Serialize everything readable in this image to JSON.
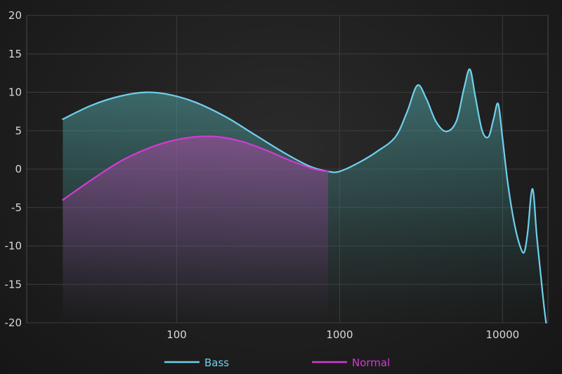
{
  "chart_data": {
    "type": "line",
    "xscale": "log",
    "xlim": [
      12,
      19000
    ],
    "ylim": [
      -20,
      20
    ],
    "grid": true,
    "legend_position": "bottom-center",
    "x_ticks": [
      100,
      1000,
      10000
    ],
    "x_tick_labels": [
      "100",
      "1000",
      "10000"
    ],
    "y_ticks": [
      20,
      15,
      10,
      5,
      0,
      -5,
      -10,
      -15,
      -20
    ],
    "y_tick_labels": [
      "20",
      "15",
      "10",
      "5",
      "0",
      "-5",
      "-10",
      "-15",
      "-20"
    ],
    "series": [
      {
        "name": "Bass",
        "color": "#6fd0ee",
        "fill": "#4fa8a8",
        "points": [
          [
            20,
            6.5
          ],
          [
            30,
            8.3
          ],
          [
            45,
            9.5
          ],
          [
            65,
            10.0
          ],
          [
            90,
            9.7
          ],
          [
            130,
            8.7
          ],
          [
            200,
            6.8
          ],
          [
            300,
            4.5
          ],
          [
            450,
            2.2
          ],
          [
            650,
            0.4
          ],
          [
            850,
            -0.3
          ],
          [
            1000,
            -0.3
          ],
          [
            1300,
            0.8
          ],
          [
            1700,
            2.3
          ],
          [
            2200,
            4.2
          ],
          [
            2600,
            7.5
          ],
          [
            3000,
            10.9
          ],
          [
            3400,
            9.2
          ],
          [
            3900,
            6.2
          ],
          [
            4500,
            4.9
          ],
          [
            5200,
            6.2
          ],
          [
            5800,
            10.5
          ],
          [
            6300,
            13.0
          ],
          [
            6800,
            9.5
          ],
          [
            7500,
            5.0
          ],
          [
            8200,
            4.2
          ],
          [
            8800,
            6.5
          ],
          [
            9400,
            8.5
          ],
          [
            10000,
            4.0
          ],
          [
            10800,
            -2.0
          ],
          [
            11800,
            -7.0
          ],
          [
            12800,
            -10.0
          ],
          [
            13600,
            -10.8
          ],
          [
            14300,
            -8.0
          ],
          [
            15000,
            -3.2
          ],
          [
            15500,
            -3.2
          ],
          [
            16200,
            -8.5
          ],
          [
            17200,
            -14.0
          ],
          [
            18000,
            -18.0
          ],
          [
            18500,
            -20.0
          ]
        ]
      },
      {
        "name": "Normal",
        "color": "#d23bd2",
        "fill": "#a03c90",
        "points": [
          [
            20,
            -4.0
          ],
          [
            30,
            -1.4
          ],
          [
            45,
            1.0
          ],
          [
            65,
            2.6
          ],
          [
            90,
            3.6
          ],
          [
            130,
            4.2
          ],
          [
            180,
            4.2
          ],
          [
            250,
            3.6
          ],
          [
            350,
            2.5
          ],
          [
            500,
            1.1
          ],
          [
            700,
            0.0
          ],
          [
            850,
            -0.3
          ]
        ]
      }
    ]
  }
}
